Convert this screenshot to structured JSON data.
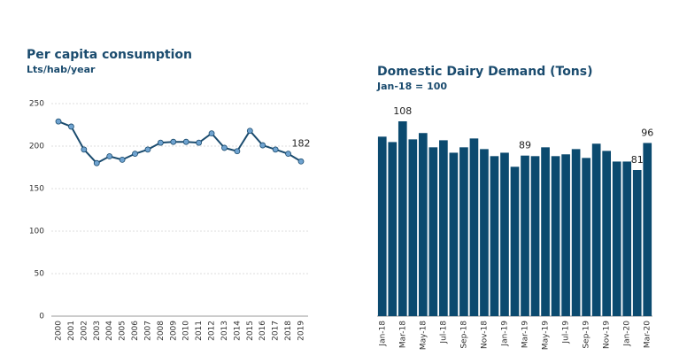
{
  "chart_data": [
    {
      "type": "line",
      "title": "Per capita consumption",
      "subtitle": "Lts/hab/year",
      "categories": [
        "2000",
        "2001",
        "2002",
        "2003",
        "2004",
        "2005",
        "2006",
        "2007",
        "2008",
        "2009",
        "2010",
        "2011",
        "2012",
        "2013",
        "2014",
        "2015",
        "2016",
        "2017",
        "2018",
        "2019"
      ],
      "values": [
        229,
        223,
        196,
        180,
        188,
        184,
        191,
        196,
        204,
        205,
        205,
        204,
        215,
        198,
        194,
        218,
        201,
        196,
        191,
        182
      ],
      "value_labels": [
        null,
        null,
        null,
        null,
        null,
        null,
        null,
        null,
        null,
        null,
        null,
        null,
        null,
        null,
        null,
        null,
        null,
        null,
        null,
        "182"
      ],
      "color": "#1a4b6e",
      "marker_color": "#6fa3d0",
      "ylim": [
        0,
        250
      ],
      "yticks": [
        0,
        50,
        100,
        150,
        200,
        250
      ],
      "grid": true
    },
    {
      "type": "bar",
      "title": "Domestic Dairy Demand (Tons)",
      "subtitle": "Jan-18 = 100",
      "categories": [
        "Jan-18",
        null,
        "Mar-18",
        null,
        "May-18",
        null,
        "Jul-18",
        null,
        "Sep-18",
        null,
        "Nov-18",
        null,
        "Jan-19",
        null,
        "Mar-19",
        null,
        "May-19",
        null,
        "Jul-19",
        null,
        "Sep-19",
        null,
        "Nov-19",
        null,
        "Jan-20",
        null,
        "Mar-20"
      ],
      "values": [
        99.5,
        96.5,
        108,
        98,
        101.5,
        93.6,
        97.5,
        90.6,
        93.6,
        98.5,
        92.6,
        88.7,
        90.6,
        82.8,
        89,
        88.7,
        93.6,
        88.7,
        89.7,
        92.6,
        87.7,
        95.6,
        91.6,
        85.7,
        85.7,
        81,
        96
      ],
      "value_labels": [
        null,
        null,
        "108",
        null,
        null,
        null,
        null,
        null,
        null,
        null,
        null,
        null,
        null,
        null,
        "89",
        null,
        null,
        null,
        null,
        null,
        null,
        null,
        null,
        null,
        null,
        "81",
        "96"
      ],
      "color": "#0b4a6f"
    }
  ]
}
